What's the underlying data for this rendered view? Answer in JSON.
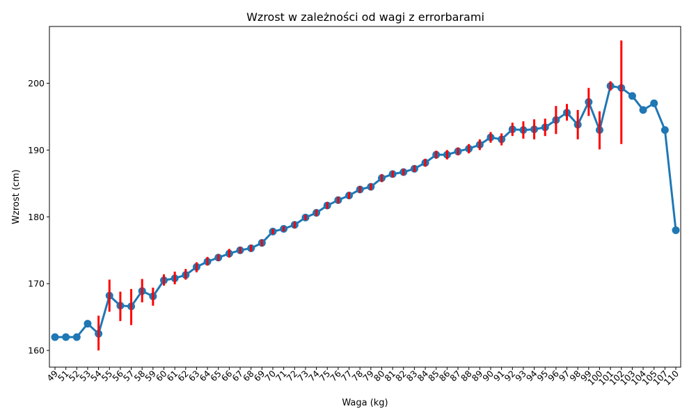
{
  "chart_data": {
    "type": "line",
    "title": "Wzrost w zależności od wagi z errorbarami",
    "xlabel": "Waga (kg)",
    "ylabel": "Wzrost (cm)",
    "ylim": [
      157.5,
      208.5
    ],
    "yticks": [
      160,
      170,
      180,
      190,
      200
    ],
    "grid": false,
    "colors": {
      "line": "#1f77b4",
      "errorbar": "#ff0000"
    },
    "categories": [
      "49",
      "51",
      "52",
      "53",
      "54",
      "55",
      "56",
      "57",
      "58",
      "59",
      "60",
      "61",
      "62",
      "63",
      "64",
      "65",
      "66",
      "67",
      "68",
      "69",
      "70",
      "71",
      "72",
      "73",
      "74",
      "75",
      "76",
      "77",
      "78",
      "79",
      "80",
      "81",
      "82",
      "83",
      "84",
      "85",
      "86",
      "87",
      "88",
      "89",
      "90",
      "91",
      "92",
      "93",
      "94",
      "95",
      "96",
      "97",
      "98",
      "99",
      "100",
      "101",
      "102",
      "103",
      "104",
      "105",
      "107",
      "110"
    ],
    "values": [
      162,
      162,
      162,
      164,
      162.5,
      168.2,
      166.7,
      166.6,
      168.9,
      168.1,
      170.5,
      170.8,
      171.3,
      172.5,
      173.3,
      173.9,
      174.5,
      175,
      175.3,
      176.1,
      177.8,
      178.2,
      178.8,
      179.9,
      180.6,
      181.7,
      182.5,
      183.2,
      184.1,
      184.5,
      185.8,
      186.4,
      186.7,
      187.2,
      188.1,
      189.3,
      189.3,
      189.8,
      190.2,
      190.8,
      191.9,
      191.6,
      193.1,
      193,
      193.1,
      193.4,
      194.5,
      195.6,
      193.8,
      197.2,
      193,
      199.6,
      199.3,
      198.1,
      196,
      197,
      193,
      178
    ],
    "errors": [
      null,
      null,
      null,
      null,
      [
        160,
        165.2
      ],
      [
        165.8,
        170.6
      ],
      [
        164.4,
        168.8
      ],
      [
        163.8,
        169.2
      ],
      [
        167.2,
        170.7
      ],
      [
        166.7,
        169.4
      ],
      [
        169.7,
        171.4
      ],
      [
        169.9,
        171.8
      ],
      [
        170.6,
        172.2
      ],
      [
        171.7,
        173.2
      ],
      [
        172.7,
        174
      ],
      [
        173.4,
        174.4
      ],
      [
        173.9,
        175.2
      ],
      [
        174.5,
        175.5
      ],
      [
        174.8,
        175.8
      ],
      [
        175.6,
        176.6
      ],
      [
        177.4,
        178.2
      ],
      [
        177.8,
        178.6
      ],
      [
        178.3,
        179.3
      ],
      [
        179.5,
        180.3
      ],
      [
        180.1,
        181.1
      ],
      [
        181.2,
        182.2
      ],
      [
        182,
        183
      ],
      [
        182.7,
        183.7
      ],
      [
        183.6,
        184.6
      ],
      [
        184,
        185
      ],
      [
        185.2,
        186.4
      ],
      [
        185.9,
        186.9
      ],
      [
        186.2,
        187.2
      ],
      [
        186.7,
        187.7
      ],
      [
        187.5,
        188.7
      ],
      [
        188.7,
        189.9
      ],
      [
        188.6,
        190
      ],
      [
        189.2,
        190.4
      ],
      [
        189.5,
        190.9
      ],
      [
        190,
        191.6
      ],
      [
        191.1,
        192.7
      ],
      [
        190.7,
        192.5
      ],
      [
        192.1,
        194.1
      ],
      [
        191.7,
        194.3
      ],
      [
        191.6,
        194.6
      ],
      [
        192.1,
        194.7
      ],
      [
        192.4,
        196.6
      ],
      [
        194.4,
        196.9
      ],
      [
        191.6,
        196
      ],
      [
        195.1,
        199.3
      ],
      [
        190.1,
        195.8
      ],
      [
        198.9,
        200.3
      ],
      [
        190.9,
        206.4
      ],
      null,
      null,
      null,
      null,
      null
    ]
  }
}
